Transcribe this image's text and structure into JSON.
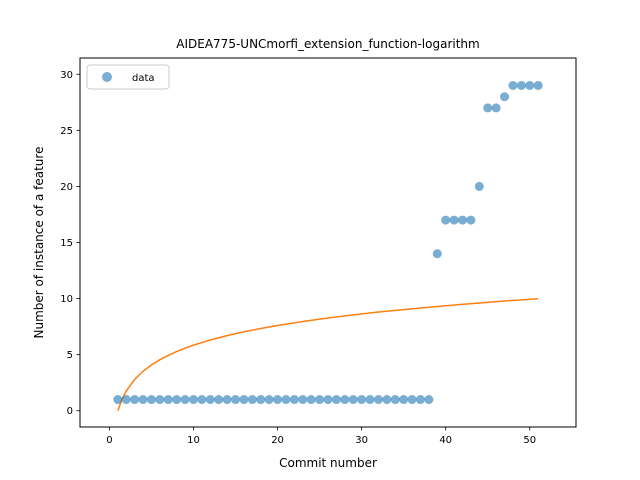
{
  "chart_data": {
    "type": "scatter",
    "title": "AIDEA775-UNCmorfi_extension_function-logarithm",
    "xlabel": "Commit number",
    "ylabel": "Number of instance of a feature",
    "xlim": [
      -3.5,
      55.5
    ],
    "ylim": [
      -1.45,
      31.45
    ],
    "xticks": [
      0,
      10,
      20,
      30,
      40,
      50
    ],
    "yticks": [
      0,
      5,
      10,
      15,
      20,
      25,
      30
    ],
    "grid": false,
    "legend": {
      "location": "upper-left",
      "entries": [
        "data"
      ]
    },
    "colors": {
      "data": "#1f77b4",
      "fit": "#ff7f0e"
    },
    "series": [
      {
        "name": "data",
        "kind": "scatter",
        "x": [
          1,
          2,
          3,
          4,
          5,
          6,
          7,
          8,
          9,
          10,
          11,
          12,
          13,
          14,
          15,
          16,
          17,
          18,
          19,
          20,
          21,
          22,
          23,
          24,
          25,
          26,
          27,
          28,
          29,
          30,
          31,
          32,
          33,
          34,
          35,
          36,
          37,
          38,
          39,
          40,
          41,
          42,
          43,
          44,
          45,
          46,
          47,
          48,
          49,
          50,
          51
        ],
        "y": [
          1,
          1,
          1,
          1,
          1,
          1,
          1,
          1,
          1,
          1,
          1,
          1,
          1,
          1,
          1,
          1,
          1,
          1,
          1,
          1,
          1,
          1,
          1,
          1,
          1,
          1,
          1,
          1,
          1,
          1,
          1,
          1,
          1,
          1,
          1,
          1,
          1,
          1,
          14,
          17,
          17,
          17,
          17,
          20,
          27,
          27,
          28,
          29,
          29,
          29,
          29
        ]
      },
      {
        "kind": "line",
        "x": [
          1,
          1.5,
          2,
          3,
          4,
          5,
          6,
          7,
          8,
          9,
          10,
          12,
          14,
          16,
          18,
          20,
          23,
          26,
          29,
          32,
          35,
          38,
          41,
          44,
          47,
          51
        ],
        "y": [
          0,
          1.03,
          1.76,
          2.79,
          3.52,
          4.09,
          4.55,
          4.94,
          5.28,
          5.58,
          5.85,
          6.31,
          6.7,
          7.04,
          7.33,
          7.6,
          7.96,
          8.27,
          8.55,
          8.8,
          9.02,
          9.23,
          9.43,
          9.61,
          9.78,
          9.99
        ]
      }
    ]
  }
}
